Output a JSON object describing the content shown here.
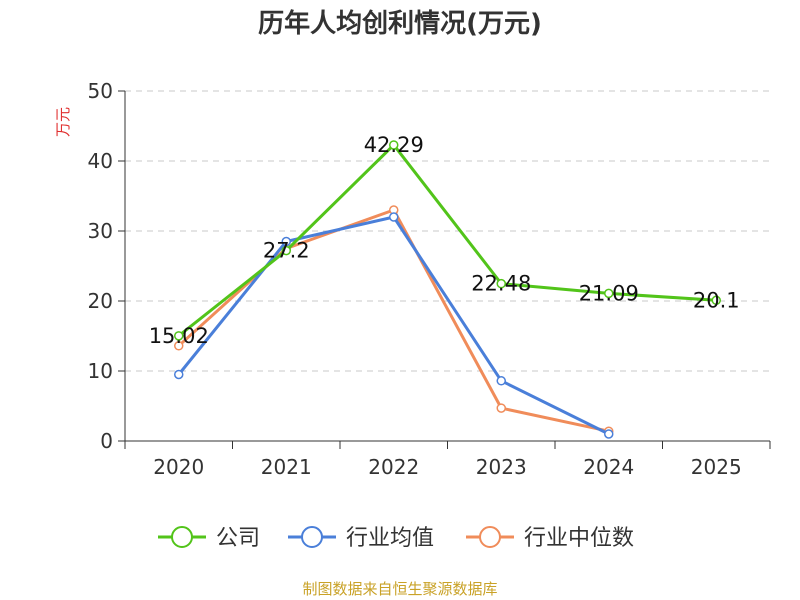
{
  "chart_data": {
    "type": "line",
    "title": "历年人均创利情况(万元)",
    "ylabel": "万元",
    "xlabel": "",
    "ylim": [
      0,
      50
    ],
    "yticks": [
      0,
      10,
      20,
      30,
      40,
      50
    ],
    "categories": [
      "2020",
      "2021",
      "2022",
      "2023",
      "2024",
      "2025"
    ],
    "series": [
      {
        "name": "公司",
        "color": "#52c41a",
        "values": [
          15.02,
          27.2,
          42.29,
          22.48,
          21.09,
          20.1
        ],
        "labels": [
          "15.02",
          "27.2",
          "42.29",
          "22.48",
          "21.09",
          "20.1"
        ]
      },
      {
        "name": "行业均值",
        "color": "#4a7fd9",
        "values": [
          9.5,
          28.5,
          32.0,
          8.6,
          1.0,
          null
        ]
      },
      {
        "name": "行业中位数",
        "color": "#f08c5a",
        "values": [
          13.6,
          27.5,
          33.0,
          4.7,
          1.4,
          null
        ]
      }
    ],
    "legend_position": "bottom",
    "grid": true
  },
  "footer": {
    "source": "制图数据来自恒生聚源数据库"
  }
}
